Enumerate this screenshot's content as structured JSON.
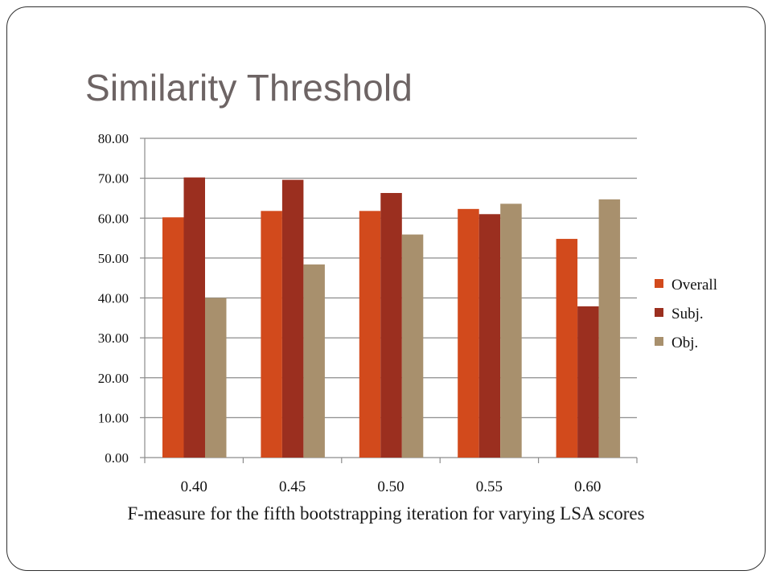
{
  "slide": {
    "title": "Similarity Threshold",
    "caption": "F-measure for the fifth bootstrapping iteration for varying LSA scores"
  },
  "colors": {
    "Overall": "#d24a1c",
    "Subj.": "#9b2f1f",
    "Obj.": "#a8906d",
    "gridline": "#8c8c8c",
    "frame": "#2f2f2f"
  },
  "chart_data": {
    "type": "bar",
    "categories": [
      "0.40",
      "0.45",
      "0.50",
      "0.55",
      "0.60"
    ],
    "series": [
      {
        "name": "Overall",
        "values": [
          60.2,
          61.8,
          61.8,
          62.3,
          54.8
        ]
      },
      {
        "name": "Subj.",
        "values": [
          70.2,
          69.6,
          66.3,
          61.0,
          37.9
        ]
      },
      {
        "name": "Obj.",
        "values": [
          40.0,
          48.4,
          55.9,
          63.6,
          64.7
        ]
      }
    ],
    "ylim": [
      0,
      80
    ],
    "yticks": [
      "0.00",
      "10.00",
      "20.00",
      "30.00",
      "40.00",
      "50.00",
      "60.00",
      "70.00",
      "80.00"
    ],
    "grid": true,
    "legend": "right"
  }
}
